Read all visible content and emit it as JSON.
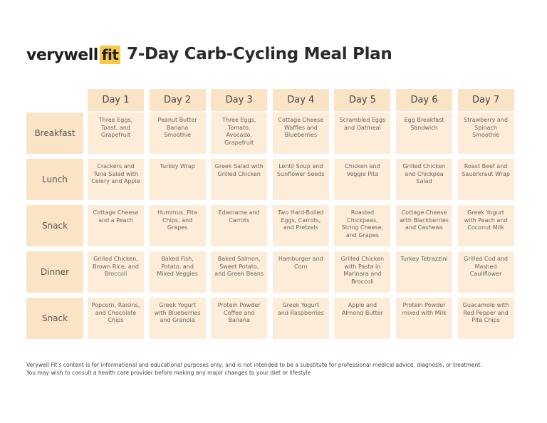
{
  "header": {
    "logo_main": "verywell",
    "logo_badge": "fit",
    "title": "7-Day Carb-Cycling Meal Plan"
  },
  "table": {
    "columns": [
      "Day 1",
      "Day 2",
      "Day 3",
      "Day 4",
      "Day 5",
      "Day 6",
      "Day 7"
    ],
    "rows": [
      {
        "label": "Breakfast",
        "cells": [
          "Three Eggs, Toast, and Grapefruit",
          "Peanut Butter Banana Smoothie",
          "Three Eggs, Tomato, Avocado, Grapefruit",
          "Cottage Cheese Waffles and Blueberries",
          "Scrambled Eggs and Oatmeal",
          "Egg Breakfast Sandwich",
          "Strawberry and Spinach Smoothie"
        ]
      },
      {
        "label": "Lunch",
        "cells": [
          "Crackers and Tuna Salad with Celery and Apple",
          "Turkey Wrap",
          "Greek Salad with Grilled Chicken",
          "Lentil Soup and Sunflower Seeds",
          "Chicken and Veggie Pita",
          "Grilled Chicken and Chickpea Salad",
          "Roast Beef and Sauerkraut Wrap"
        ]
      },
      {
        "label": "Snack",
        "cells": [
          "Cottage Cheese and a Peach",
          "Hummus, Pita Chips, and Grapes",
          "Edamame and Carrots",
          "Two Hard-Boiled Eggs, Carrots, and Pretzels",
          "Roasted Chickpeas, String Cheese, and Grapes",
          "Cottage Cheese with Blackberries and Cashews",
          "Greek Yogurt with Peach and Coconut Milk"
        ]
      },
      {
        "label": "Dinner",
        "cells": [
          "Grilled Chicken, Brown Rice, and Broccoli",
          "Baked Fish, Potato, and Mixed Veggies",
          "Baked Salmon, Sweet Potato, and Green Beans",
          "Hamburger and Corn",
          "Grilled Chicken with Pasta in Marinara and Broccoli",
          "Turkey Tetrazzini",
          "Grilled Cod and Mashed Cauliflower"
        ]
      },
      {
        "label": "Snack",
        "cells": [
          "Popcorn, Raisins, and Chocolate Chips",
          "Greek Yogurt with Blueberries and Granola",
          "Protein Powder Coffee and Banana",
          "Greek Yogurt and Raspberries",
          "Apple and Almond Butter",
          "Protein Powder mixed with Milk",
          "Guacamole with Red Pepper and Pita Chips"
        ]
      }
    ]
  },
  "footer": [
    "Verywell Fit's content is for informational and educational purposes only, and is not intended to be a substitute for professional medical advice, diagnosis, or treatment.",
    "You may wish to consult a health care provider before making any major changes to your diet or lifestyle"
  ]
}
